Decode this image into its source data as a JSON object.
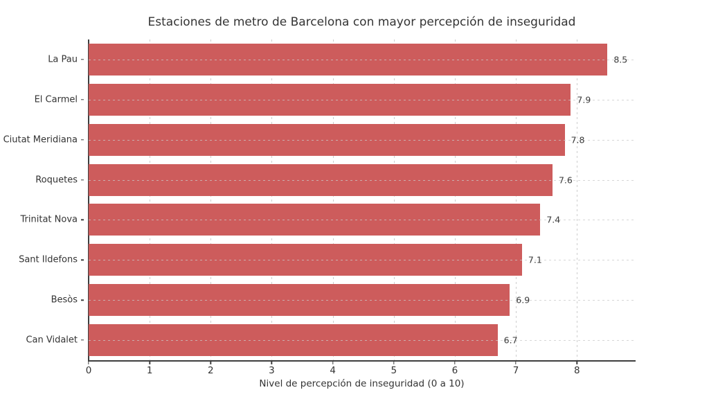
{
  "chart_data": {
    "type": "bar",
    "orientation": "horizontal",
    "title": "Estaciones de metro de Barcelona con mayor percepción de inseguridad",
    "categories": [
      "La Pau",
      "El Carmel",
      "Ciutat Meridiana",
      "Roquetes",
      "Trinitat Nova",
      "Sant Ildefons",
      "Besòs",
      "Can Vidalet"
    ],
    "values": [
      8.5,
      7.9,
      7.8,
      7.6,
      7.4,
      7.1,
      6.9,
      6.7
    ],
    "value_labels": [
      "8.5",
      "7.9",
      "7.8",
      "7.6",
      "7.4",
      "7.1",
      "6.9",
      "6.7"
    ],
    "xlabel": "Nivel de percepción de inseguridad (0 a 10)",
    "xlim": [
      0,
      8.95
    ],
    "xticks": [
      0,
      1,
      2,
      3,
      4,
      5,
      6,
      7,
      8
    ],
    "grid": "both-dashed",
    "legend": "none",
    "bar_color": "#cd5c5c",
    "grid_color": "#cccccc",
    "spine_color": "#3d3d3d",
    "text_color": "#333333"
  }
}
